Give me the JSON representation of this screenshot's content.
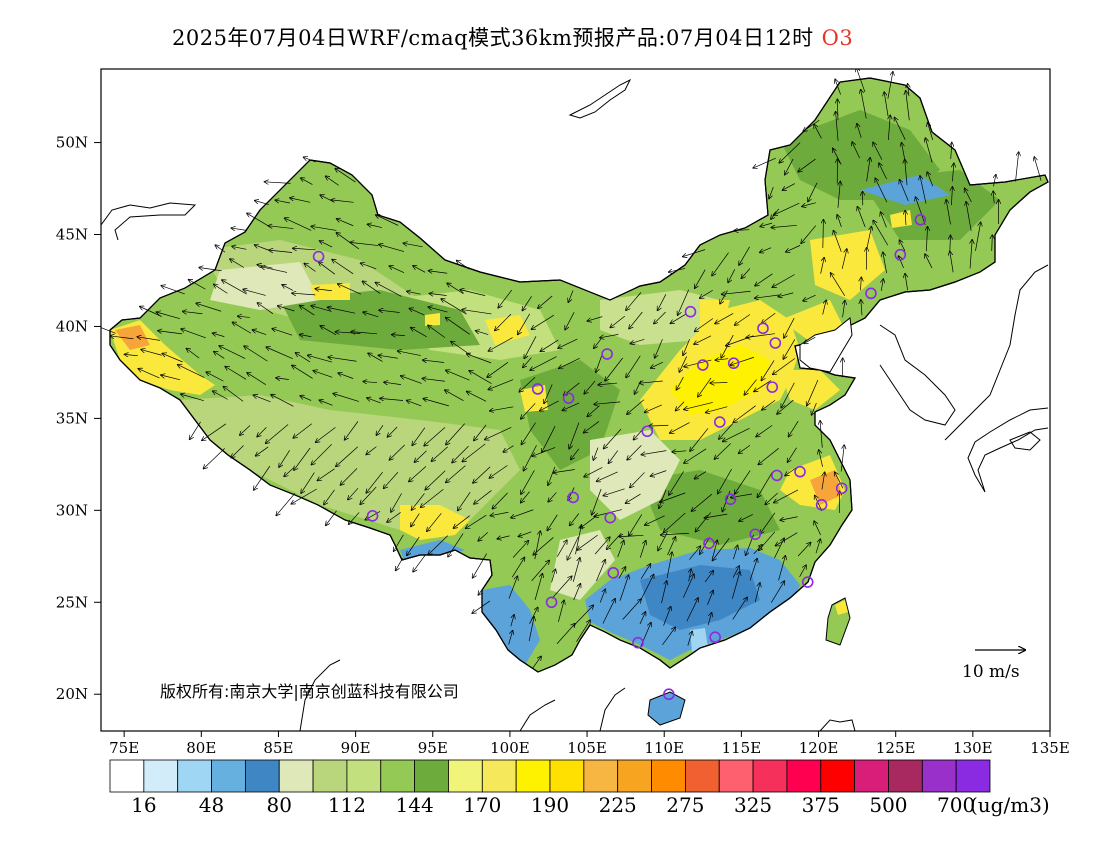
{
  "title": {
    "text": "2025年07月04日WRF/cmaq模式36km预报产品:07月04日12时",
    "pollutant": "O3",
    "pollutant_color": "#e8332a"
  },
  "map": {
    "lon_labels": [
      "75E",
      "80E",
      "85E",
      "90E",
      "95E",
      "100E",
      "105E",
      "110E",
      "115E",
      "120E",
      "125E",
      "130E",
      "135E"
    ],
    "lat_labels": [
      "50N",
      "45N",
      "40N",
      "35N",
      "30N",
      "25N",
      "20N"
    ],
    "copyright": "版权所有:南京大学|南京创蓝科技有限公司",
    "wind_scale_label": "10 m/s",
    "palette": {
      "ocean": "#ffffff",
      "land_base": "#93c954",
      "land_dark": "#6eab3d",
      "land_pale": "#c9e08f",
      "land_pale2": "#dfe8b8",
      "yellow": "#fbe83c",
      "yellow_bright": "#fff200",
      "orange": "#f7a53a",
      "blue_mid": "#5ba3d9",
      "blue_dark": "#3f86c4",
      "blue_light": "#9fd4f2"
    }
  },
  "colorbar": {
    "colors": [
      "#ffffff",
      "#d2ecf9",
      "#9fd6f4",
      "#66b0e0",
      "#3f86c4",
      "#dfe8b8",
      "#b9d67c",
      "#c2e07e",
      "#93c954",
      "#6eab3d",
      "#f0f57a",
      "#f5e85a",
      "#fff200",
      "#ffe000",
      "#f7b542",
      "#f7a520",
      "#ff8c00",
      "#f06030",
      "#ff6070",
      "#f5305a",
      "#ff0050",
      "#ff0000",
      "#d91e7a",
      "#a82860",
      "#9930c9",
      "#8a2be2"
    ],
    "labels": [
      "16",
      "48",
      "80",
      "112",
      "144",
      "170",
      "190",
      "225",
      "275",
      "325",
      "375",
      "500",
      "700"
    ],
    "unit": "(ug/m3)"
  },
  "stations": [
    {
      "lon": 87.6,
      "lat": 43.8
    },
    {
      "lon": 91.1,
      "lat": 29.7
    },
    {
      "lon": 101.8,
      "lat": 36.6
    },
    {
      "lon": 103.8,
      "lat": 36.1
    },
    {
      "lon": 106.3,
      "lat": 38.5
    },
    {
      "lon": 111.7,
      "lat": 40.8
    },
    {
      "lon": 104.1,
      "lat": 30.7
    },
    {
      "lon": 106.5,
      "lat": 29.6
    },
    {
      "lon": 102.7,
      "lat": 25.0
    },
    {
      "lon": 106.7,
      "lat": 26.6
    },
    {
      "lon": 108.9,
      "lat": 34.3
    },
    {
      "lon": 112.5,
      "lat": 37.9
    },
    {
      "lon": 114.5,
      "lat": 38.0
    },
    {
      "lon": 116.4,
      "lat": 39.9
    },
    {
      "lon": 117.2,
      "lat": 39.1
    },
    {
      "lon": 113.6,
      "lat": 34.8
    },
    {
      "lon": 117.0,
      "lat": 36.7
    },
    {
      "lon": 114.3,
      "lat": 30.6
    },
    {
      "lon": 112.9,
      "lat": 28.2
    },
    {
      "lon": 115.9,
      "lat": 28.7
    },
    {
      "lon": 117.3,
      "lat": 31.9
    },
    {
      "lon": 118.8,
      "lat": 32.1
    },
    {
      "lon": 120.2,
      "lat": 30.3
    },
    {
      "lon": 121.5,
      "lat": 31.2
    },
    {
      "lon": 119.3,
      "lat": 26.1
    },
    {
      "lon": 113.3,
      "lat": 23.1
    },
    {
      "lon": 108.3,
      "lat": 22.8
    },
    {
      "lon": 110.3,
      "lat": 20.0
    },
    {
      "lon": 123.4,
      "lat": 41.8
    },
    {
      "lon": 125.3,
      "lat": 43.9
    },
    {
      "lon": 126.6,
      "lat": 45.8
    }
  ]
}
